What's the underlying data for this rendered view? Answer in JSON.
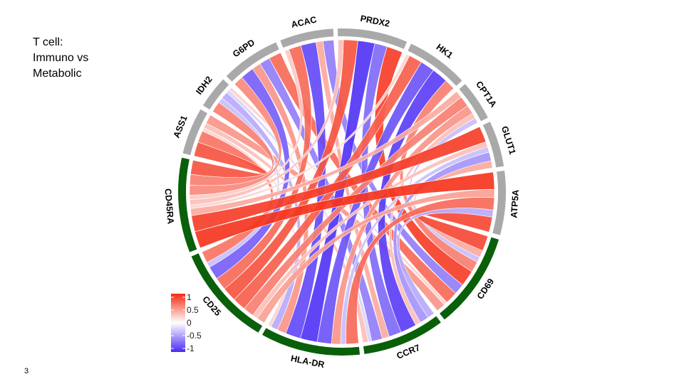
{
  "slide": {
    "title_lines": [
      "T cell:",
      "Immuno vs",
      "Metabolic"
    ],
    "page_number": "3"
  },
  "colors": {
    "immune_track": "#0a5f0a",
    "metabolic_track": "#a9a9a9",
    "positive": "#f42a12",
    "neutral": "#ffffff",
    "negative": "#4a2af5"
  },
  "chart_data": {
    "type": "chord",
    "sectors": [
      {
        "name": "PRDX2",
        "group": "metabolic"
      },
      {
        "name": "HK1",
        "group": "metabolic"
      },
      {
        "name": "CPT1A",
        "group": "metabolic"
      },
      {
        "name": "GLUT1",
        "group": "metabolic"
      },
      {
        "name": "ATP5A",
        "group": "metabolic"
      },
      {
        "name": "CD69",
        "group": "immune"
      },
      {
        "name": "CCR7",
        "group": "immune"
      },
      {
        "name": "HLA-DR",
        "group": "immune"
      },
      {
        "name": "CD25",
        "group": "immune"
      },
      {
        "name": "CD45RA",
        "group": "immune"
      },
      {
        "name": "ASS1",
        "group": "metabolic"
      },
      {
        "name": "IDH2",
        "group": "metabolic"
      },
      {
        "name": "G6PD",
        "group": "metabolic"
      },
      {
        "name": "ACAC",
        "group": "metabolic"
      }
    ],
    "links": [
      {
        "immune": "CD69",
        "metabolic": "PRDX2",
        "value": 0.9
      },
      {
        "immune": "CD69",
        "metabolic": "HK1",
        "value": 0.6
      },
      {
        "immune": "CD69",
        "metabolic": "CPT1A",
        "value": -0.3
      },
      {
        "immune": "CD69",
        "metabolic": "GLUT1",
        "value": 0.4
      },
      {
        "immune": "CD69",
        "metabolic": "ATP5A",
        "value": 0.85
      },
      {
        "immune": "CD69",
        "metabolic": "ASS1",
        "value": 0.5
      },
      {
        "immune": "CD69",
        "metabolic": "IDH2",
        "value": 0.2
      },
      {
        "immune": "CD69",
        "metabolic": "G6PD",
        "value": 0.7
      },
      {
        "immune": "CD69",
        "metabolic": "ACAC",
        "value": -0.6
      },
      {
        "immune": "CCR7",
        "metabolic": "PRDX2",
        "value": -0.7
      },
      {
        "immune": "CCR7",
        "metabolic": "HK1",
        "value": -0.9
      },
      {
        "immune": "CCR7",
        "metabolic": "CPT1A",
        "value": 0.3
      },
      {
        "immune": "CCR7",
        "metabolic": "GLUT1",
        "value": -0.5
      },
      {
        "immune": "CCR7",
        "metabolic": "ATP5A",
        "value": -0.4
      },
      {
        "immune": "CCR7",
        "metabolic": "ASS1",
        "value": 0.3
      },
      {
        "immune": "CCR7",
        "metabolic": "IDH2",
        "value": -0.2
      },
      {
        "immune": "CCR7",
        "metabolic": "G6PD",
        "value": -0.6
      },
      {
        "immune": "CCR7",
        "metabolic": "ACAC",
        "value": 0.4
      },
      {
        "immune": "HLA-DR",
        "metabolic": "PRDX2",
        "value": -0.95
      },
      {
        "immune": "HLA-DR",
        "metabolic": "HK1",
        "value": -0.8
      },
      {
        "immune": "HLA-DR",
        "metabolic": "CPT1A",
        "value": 0.5
      },
      {
        "immune": "HLA-DR",
        "metabolic": "GLUT1",
        "value": -0.3
      },
      {
        "immune": "HLA-DR",
        "metabolic": "ATP5A",
        "value": 0.7
      },
      {
        "immune": "HLA-DR",
        "metabolic": "ASS1",
        "value": 0.2
      },
      {
        "immune": "HLA-DR",
        "metabolic": "IDH2",
        "value": -0.4
      },
      {
        "immune": "HLA-DR",
        "metabolic": "G6PD",
        "value": 0.5
      },
      {
        "immune": "HLA-DR",
        "metabolic": "ACAC",
        "value": -0.85
      },
      {
        "immune": "CD25",
        "metabolic": "PRDX2",
        "value": 0.8
      },
      {
        "immune": "CD25",
        "metabolic": "HK1",
        "value": 0.75
      },
      {
        "immune": "CD25",
        "metabolic": "CPT1A",
        "value": 0.6
      },
      {
        "immune": "CD25",
        "metabolic": "GLUT1",
        "value": 0.3
      },
      {
        "immune": "CD25",
        "metabolic": "ATP5A",
        "value": 0.45
      },
      {
        "immune": "CD25",
        "metabolic": "ASS1",
        "value": 0.65
      },
      {
        "immune": "CD25",
        "metabolic": "IDH2",
        "value": -0.3
      },
      {
        "immune": "CD25",
        "metabolic": "G6PD",
        "value": -0.75
      },
      {
        "immune": "CD25",
        "metabolic": "ACAC",
        "value": 0.7
      },
      {
        "immune": "CD45RA",
        "metabolic": "PRDX2",
        "value": 0.3
      },
      {
        "immune": "CD45RA",
        "metabolic": "HK1",
        "value": 0.2
      },
      {
        "immune": "CD45RA",
        "metabolic": "CPT1A",
        "value": 0.4
      },
      {
        "immune": "CD45RA",
        "metabolic": "GLUT1",
        "value": 0.9
      },
      {
        "immune": "CD45RA",
        "metabolic": "ATP5A",
        "value": 0.95
      },
      {
        "immune": "CD45RA",
        "metabolic": "ASS1",
        "value": 0.8
      },
      {
        "immune": "CD45RA",
        "metabolic": "IDH2",
        "value": 0.6
      },
      {
        "immune": "CD45RA",
        "metabolic": "G6PD",
        "value": 0.55
      },
      {
        "immune": "CD45RA",
        "metabolic": "ACAC",
        "value": 0.25
      }
    ],
    "legend": {
      "ticks": [
        "1",
        "0.5",
        "0",
        "-0.5",
        "-1"
      ],
      "range": [
        -1,
        1
      ]
    }
  }
}
